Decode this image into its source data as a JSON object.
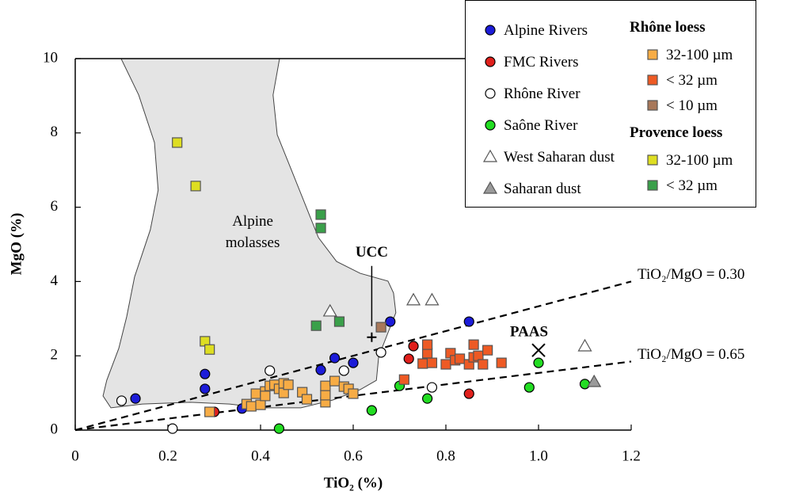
{
  "chart_data": {
    "type": "scatter",
    "xlabel": "TiO₂ (%)",
    "ylabel": "MgO (%)",
    "xlim": [
      0,
      1.2
    ],
    "ylim": [
      0,
      10
    ],
    "xticks": [
      0,
      0.2,
      0.4,
      0.6,
      0.8,
      {
        "value": 1,
        "label": "1.0"
      },
      1.2
    ],
    "yticks": [
      0,
      2,
      4,
      6,
      8,
      10
    ],
    "legend_groups": [
      {
        "title": "Rhône loess"
      },
      {
        "title": "Provence loess"
      }
    ],
    "series": [
      {
        "name": "Alpine Rivers",
        "color": "#1c1cd8",
        "marker": "circle",
        "x": [
          0.13,
          0.28,
          0.28,
          0.36,
          0.53,
          0.56,
          0.6,
          0.68,
          0.85
        ],
        "values": [
          0.85,
          1.51,
          1.11,
          0.58,
          1.62,
          1.94,
          1.81,
          2.92,
          2.92
        ]
      },
      {
        "name": "FMC Rivers",
        "color": "#e0201c",
        "marker": "circle",
        "x": [
          0.3,
          0.73,
          0.72,
          0.85
        ],
        "values": [
          0.49,
          2.26,
          1.92,
          0.98
        ]
      },
      {
        "name": "Rhône River",
        "color": "#ffffff",
        "marker": "circle",
        "x": [
          0.1,
          0.21,
          0.42,
          0.58,
          0.66,
          0.77
        ],
        "values": [
          0.79,
          0.04,
          1.6,
          1.6,
          2.09,
          1.15
        ]
      },
      {
        "name": "Saône River",
        "color": "#22dd22",
        "marker": "circle",
        "x": [
          0.44,
          0.64,
          0.7,
          0.76,
          1.0,
          0.98,
          1.1
        ],
        "values": [
          0.04,
          0.53,
          1.19,
          0.85,
          1.81,
          1.15,
          1.24
        ]
      },
      {
        "name": "West Saharan dust",
        "color": "#ffffff",
        "marker": "triangle",
        "x": [
          0.55,
          0.73,
          0.77,
          1.1
        ],
        "values": [
          3.2,
          3.5,
          3.5,
          2.26
        ]
      },
      {
        "name": "Saharan dust",
        "color": "#9a9a9a",
        "marker": "triangle",
        "x": [
          1.12
        ],
        "values": [
          1.3
        ]
      },
      {
        "name": "32-100 µm",
        "color": "#f7ac45",
        "marker": "square",
        "group": 0,
        "x": [
          0.29,
          0.37,
          0.38,
          0.4,
          0.39,
          0.41,
          0.42,
          0.43,
          0.44,
          0.45,
          0.45,
          0.46,
          0.49,
          0.5,
          0.54,
          0.54,
          0.54,
          0.56,
          0.58,
          0.59,
          0.6,
          0.41
        ],
        "values": [
          0.49,
          0.7,
          0.64,
          0.68,
          0.98,
          1.04,
          1.19,
          1.22,
          1.11,
          1.0,
          1.26,
          1.22,
          1.02,
          0.83,
          0.75,
          0.94,
          1.19,
          1.32,
          1.17,
          1.11,
          0.98,
          0.92
        ]
      },
      {
        "name": "< 32 µm",
        "color": "#ee5a24",
        "marker": "square",
        "group": 0,
        "x": [
          0.75,
          0.76,
          0.76,
          0.77,
          0.8,
          0.81,
          0.82,
          0.83,
          0.85,
          0.86,
          0.86,
          0.87,
          0.88,
          0.89,
          0.92,
          0.71
        ],
        "values": [
          1.79,
          2.07,
          2.3,
          1.81,
          1.77,
          2.07,
          1.88,
          1.92,
          1.77,
          1.96,
          2.3,
          2.0,
          1.77,
          2.15,
          1.81,
          1.36
        ]
      },
      {
        "name": "< 10 µm",
        "color": "#a8785a",
        "marker": "square",
        "group": 0,
        "x": [
          0.66
        ],
        "values": [
          2.77
        ]
      },
      {
        "name": "32-100 µm",
        "color": "#dede22",
        "marker": "square",
        "group": 1,
        "x": [
          0.22,
          0.26,
          0.28,
          0.29
        ],
        "values": [
          7.74,
          6.57,
          2.39,
          2.17
        ]
      },
      {
        "name": "< 32 µm",
        "color": "#3aa04a",
        "marker": "square",
        "group": 1,
        "x": [
          0.53,
          0.53,
          0.52,
          0.57
        ],
        "values": [
          5.8,
          5.44,
          2.81,
          2.92
        ]
      }
    ],
    "ratio_lines": [
      {
        "label": "TiO₂/MgO = 0.30",
        "ratio": 0.3
      },
      {
        "label": "TiO₂/MgO = 0.65",
        "ratio": 0.65
      }
    ],
    "references": [
      {
        "label": "UCC",
        "x": 0.64,
        "y": 2.5,
        "marker": "plus"
      },
      {
        "label": "PAAS",
        "x": 1.0,
        "y": 2.15,
        "marker": "cross"
      }
    ],
    "region": {
      "label": "Alpine molasses",
      "x": [
        0.099,
        0.441,
        0.427,
        0.436,
        0.467,
        0.501,
        0.525,
        0.564,
        0.615,
        0.675,
        0.687,
        0.692,
        0.675,
        0.655,
        0.65,
        0.615,
        0.556,
        0.487,
        0.402,
        0.333,
        0.248,
        0.145,
        0.077,
        0.06,
        0.068,
        0.094,
        0.111,
        0.128,
        0.162,
        0.179,
        0.171,
        0.137
      ],
      "y": [
        10,
        10,
        9.02,
        7.95,
        6.99,
        5.93,
        5.18,
        4.54,
        4.22,
        4.01,
        3.69,
        3.16,
        2.62,
        1.98,
        1.34,
        1.09,
        0.81,
        0.6,
        0.6,
        0.7,
        0.75,
        0.7,
        0.6,
        0.92,
        1.34,
        2.2,
        3.05,
        4.12,
        5.39,
        6.46,
        7.74,
        9.02
      ]
    }
  }
}
